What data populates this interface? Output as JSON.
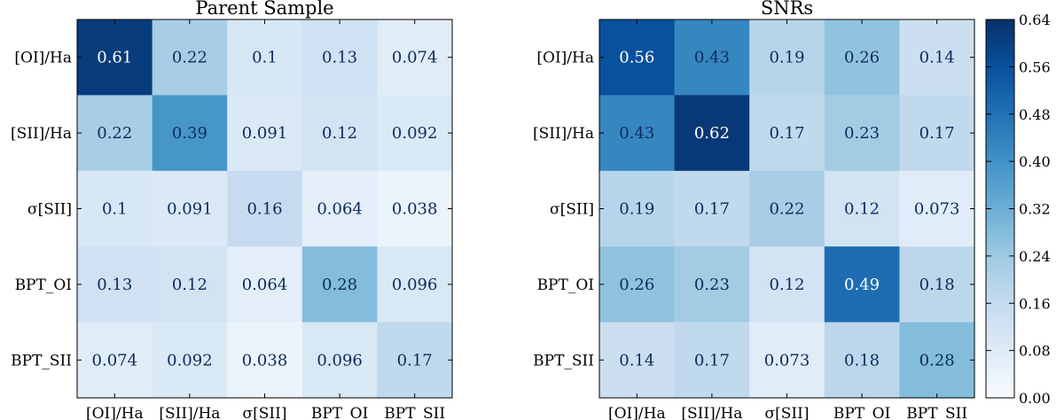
{
  "chart_data": [
    {
      "type": "heatmap",
      "title": "Parent Sample",
      "x_categories": [
        "[OI]/Ha",
        "[SII]/Ha",
        "σ[SII]",
        "BPT_OI",
        "BPT_SII"
      ],
      "y_categories": [
        "[OI]/Ha",
        "[SII]/Ha",
        "σ[SII]",
        "BPT_OI",
        "BPT_SII"
      ],
      "values": [
        [
          0.61,
          0.22,
          0.1,
          0.13,
          0.074
        ],
        [
          0.22,
          0.39,
          0.091,
          0.12,
          0.092
        ],
        [
          0.1,
          0.091,
          0.16,
          0.064,
          0.038
        ],
        [
          0.13,
          0.12,
          0.064,
          0.28,
          0.096
        ],
        [
          0.074,
          0.092,
          0.038,
          0.096,
          0.17
        ]
      ],
      "value_labels": [
        [
          "0.61",
          "0.22",
          "0.1",
          "0.13",
          "0.074"
        ],
        [
          "0.22",
          "0.39",
          "0.091",
          "0.12",
          "0.092"
        ],
        [
          "0.1",
          "0.091",
          "0.16",
          "0.064",
          "0.038"
        ],
        [
          "0.13",
          "0.12",
          "0.064",
          "0.28",
          "0.096"
        ],
        [
          "0.074",
          "0.092",
          "0.038",
          "0.096",
          "0.17"
        ]
      ]
    },
    {
      "type": "heatmap",
      "title": "SNRs",
      "x_categories": [
        "[OI]/Ha",
        "[SII]/Ha",
        "σ[SII]",
        "BPT_OI",
        "BPT_SII"
      ],
      "y_categories": [
        "[OI]/Ha",
        "[SII]/Ha",
        "σ[SII]",
        "BPT_OI",
        "BPT_SII"
      ],
      "values": [
        [
          0.56,
          0.43,
          0.19,
          0.26,
          0.14
        ],
        [
          0.43,
          0.62,
          0.17,
          0.23,
          0.17
        ],
        [
          0.19,
          0.17,
          0.22,
          0.12,
          0.073
        ],
        [
          0.26,
          0.23,
          0.12,
          0.49,
          0.18
        ],
        [
          0.14,
          0.17,
          0.073,
          0.18,
          0.28
        ]
      ],
      "value_labels": [
        [
          "0.56",
          "0.43",
          "0.19",
          "0.26",
          "0.14"
        ],
        [
          "0.43",
          "0.62",
          "0.17",
          "0.23",
          "0.17"
        ],
        [
          "0.19",
          "0.17",
          "0.22",
          "0.12",
          "0.073"
        ],
        [
          "0.26",
          "0.23",
          "0.12",
          "0.49",
          "0.18"
        ],
        [
          "0.14",
          "0.17",
          "0.073",
          "0.18",
          "0.28"
        ]
      ]
    }
  ],
  "colorbar": {
    "colormap": "Blues",
    "range": [
      0.0,
      0.64
    ],
    "ticks": [
      0.0,
      0.08,
      0.16,
      0.24,
      0.32,
      0.4,
      0.48,
      0.56,
      0.64
    ],
    "tick_labels": [
      "0.00",
      "0.08",
      "0.16",
      "0.24",
      "0.32",
      "0.40",
      "0.48",
      "0.56",
      "0.64"
    ],
    "colors": [
      "#f7fbff",
      "#deebf7",
      "#c6dbef",
      "#9ecae1",
      "#6baed6",
      "#4292c6",
      "#2171b5",
      "#08519c",
      "#08306b"
    ]
  }
}
